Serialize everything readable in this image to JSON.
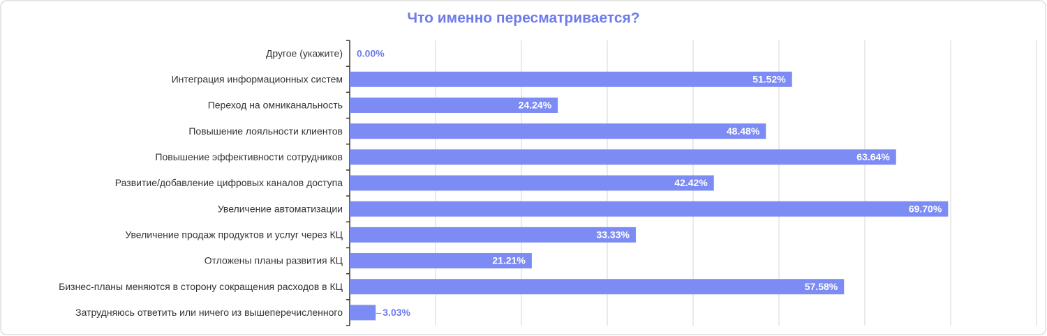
{
  "chart_data": {
    "type": "bar",
    "orientation": "horizontal",
    "title": "Что именно пересматривается?",
    "categories": [
      "Другое (укажите)",
      "Интеграция информационных систем",
      "Переход на омниканальность",
      "Повышение лояльности клиентов",
      "Повышение эффективности сотрудников",
      "Развитие/добавление цифровых каналов доступа",
      "Увеличение автоматизации",
      "Увеличение продаж продуктов и услуг через КЦ",
      "Отложены планы развития КЦ",
      "Бизнес-планы меняются в сторону сокращения расходов в КЦ",
      "Затрудняюсь ответить или ничего из вышеперечисленного"
    ],
    "values": [
      0,
      51.52,
      24.24,
      48.48,
      63.64,
      42.42,
      69.7,
      33.33,
      21.21,
      57.58,
      3.03
    ],
    "value_labels": [
      "0.00%",
      "51.52%",
      "24.24%",
      "48.48%",
      "63.64%",
      "42.42%",
      "69.70%",
      "33.33%",
      "21.21%",
      "57.58%",
      "3.03%"
    ],
    "color": "#7d8bf4",
    "xlim": [
      0,
      80
    ],
    "xticks": [
      0,
      10,
      20,
      30,
      40,
      50,
      60,
      70,
      80
    ],
    "grid": true
  }
}
